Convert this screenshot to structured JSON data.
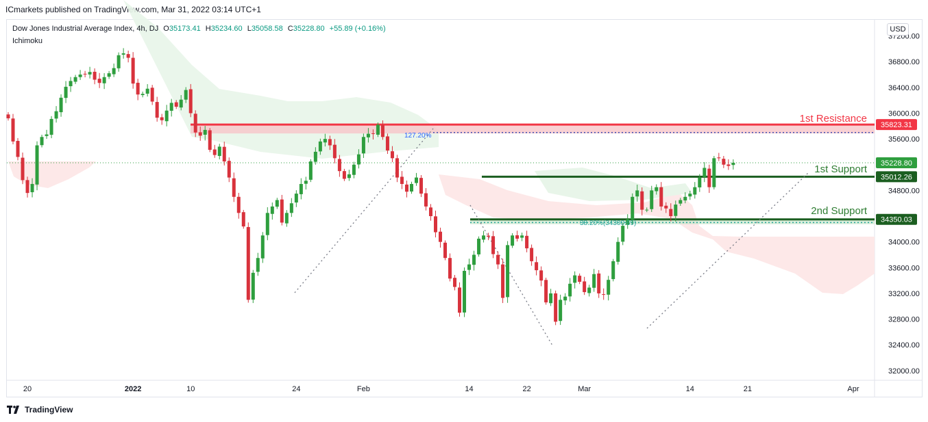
{
  "header": {
    "published": "ICmarkets published on TradingView.com, Mar 31, 2022 03:14 UTC+1"
  },
  "legend": {
    "symbol": "Dow Jones Industrial Average Index, 4h, DJ",
    "open_label": "O",
    "open": "35173.41",
    "high_label": "H",
    "high": "35234.60",
    "low_label": "L",
    "low": "35058.58",
    "close_label": "C",
    "close": "35228.80",
    "change": "+55.89 (+0.16%)",
    "indicator": "Ichimoku"
  },
  "currency": "USD",
  "footer": {
    "brand": "TradingView"
  },
  "colors": {
    "up": "#2e9e3e",
    "down": "#d8323c",
    "resistance": "#f23645",
    "support": "#1b5e20",
    "support_text": "#2e7d32",
    "fib": "#2962ff",
    "cloud_green": "#e8f5e9",
    "cloud_red": "#fde8e8"
  },
  "chart_data": {
    "type": "candlestick",
    "title": "Dow Jones Industrial Average Index, 4h, DJ",
    "y_range": [
      31850,
      37450
    ],
    "y_ticks": [
      37200,
      36800,
      36400,
      36000,
      35600,
      34800,
      34000,
      33600,
      33200,
      32800,
      32400,
      32000
    ],
    "y_tick_labels": [
      "37200.00",
      "36800.00",
      "36400.00",
      "36000.00",
      "35600.00",
      "34800.00",
      "34000.00",
      "33600.00",
      "33200.00",
      "32800.00",
      "32400.00",
      "32000.00"
    ],
    "x_labels": [
      {
        "label": "20",
        "bar": 4
      },
      {
        "label": "2022",
        "bar": 26
      },
      {
        "label": "10",
        "bar": 38
      },
      {
        "label": "24",
        "bar": 60
      },
      {
        "label": "Feb",
        "bar": 74
      },
      {
        "label": "14",
        "bar": 96
      },
      {
        "label": "22",
        "bar": 108
      },
      {
        "label": "Mar",
        "bar": 120
      },
      {
        "label": "14",
        "bar": 142
      },
      {
        "label": "21",
        "bar": 154
      },
      {
        "label": "Apr",
        "bar": 176
      }
    ],
    "bars_in_view": 180,
    "closes": [
      35920,
      35560,
      35320,
      34960,
      34760,
      34900,
      35500,
      35630,
      35670,
      35910,
      36030,
      36240,
      36410,
      36500,
      36560,
      36600,
      36610,
      36640,
      36520,
      36470,
      36560,
      36620,
      36700,
      36900,
      36930,
      36860,
      36460,
      36290,
      36300,
      36380,
      36180,
      35930,
      35890,
      36040,
      36160,
      36100,
      36210,
      36360,
      36000,
      35700,
      35650,
      35740,
      35430,
      35350,
      35480,
      35250,
      35000,
      34700,
      34450,
      34240,
      33100,
      33520,
      33750,
      34100,
      34450,
      34550,
      34650,
      34300,
      34450,
      34600,
      34750,
      34900,
      34950,
      35250,
      35400,
      35560,
      35600,
      35500,
      35300,
      35100,
      34980,
      35050,
      35200,
      35360,
      35630,
      35680,
      35680,
      35820,
      35630,
      35420,
      35300,
      35000,
      34900,
      34780,
      34900,
      35000,
      34750,
      34550,
      34400,
      34150,
      34000,
      33750,
      33430,
      33300,
      32900,
      33550,
      33650,
      33800,
      34050,
      34100,
      34080,
      33810,
      33650,
      33130,
      33950,
      34100,
      34050,
      34100,
      33900,
      33700,
      33560,
      33400,
      33060,
      33200,
      32760,
      33100,
      33150,
      33350,
      33480,
      33380,
      33220,
      33290,
      33500,
      33200,
      33180,
      33410,
      33700,
      34000,
      34250,
      34350,
      34700,
      34800,
      34500,
      34500,
      34800,
      34850,
      34550,
      34520,
      34400,
      34580,
      34650,
      34700,
      34750,
      34850,
      35000,
      35150,
      34850,
      35300,
      35300,
      35200,
      35180,
      35229
    ],
    "series": [
      {
        "name": "1st Resistance",
        "value": 35823.31,
        "label": "35823.31"
      },
      {
        "name": "1st Support",
        "value": 35012.26,
        "label": "35012.26"
      },
      {
        "name": "2nd Support",
        "value": 34350.03,
        "label": "34350.03"
      },
      {
        "name": "Last price",
        "value": 35228.8,
        "label": "35228.80"
      }
    ],
    "fib_levels": [
      {
        "label": "127.20%",
        "value": 35700
      },
      {
        "label": "38.20%(34300.69)",
        "value": 34300.69
      }
    ],
    "annotations": {
      "resistance_text": "1st Resistance",
      "support1_text": "1st Support",
      "support2_text": "2nd Support"
    }
  }
}
